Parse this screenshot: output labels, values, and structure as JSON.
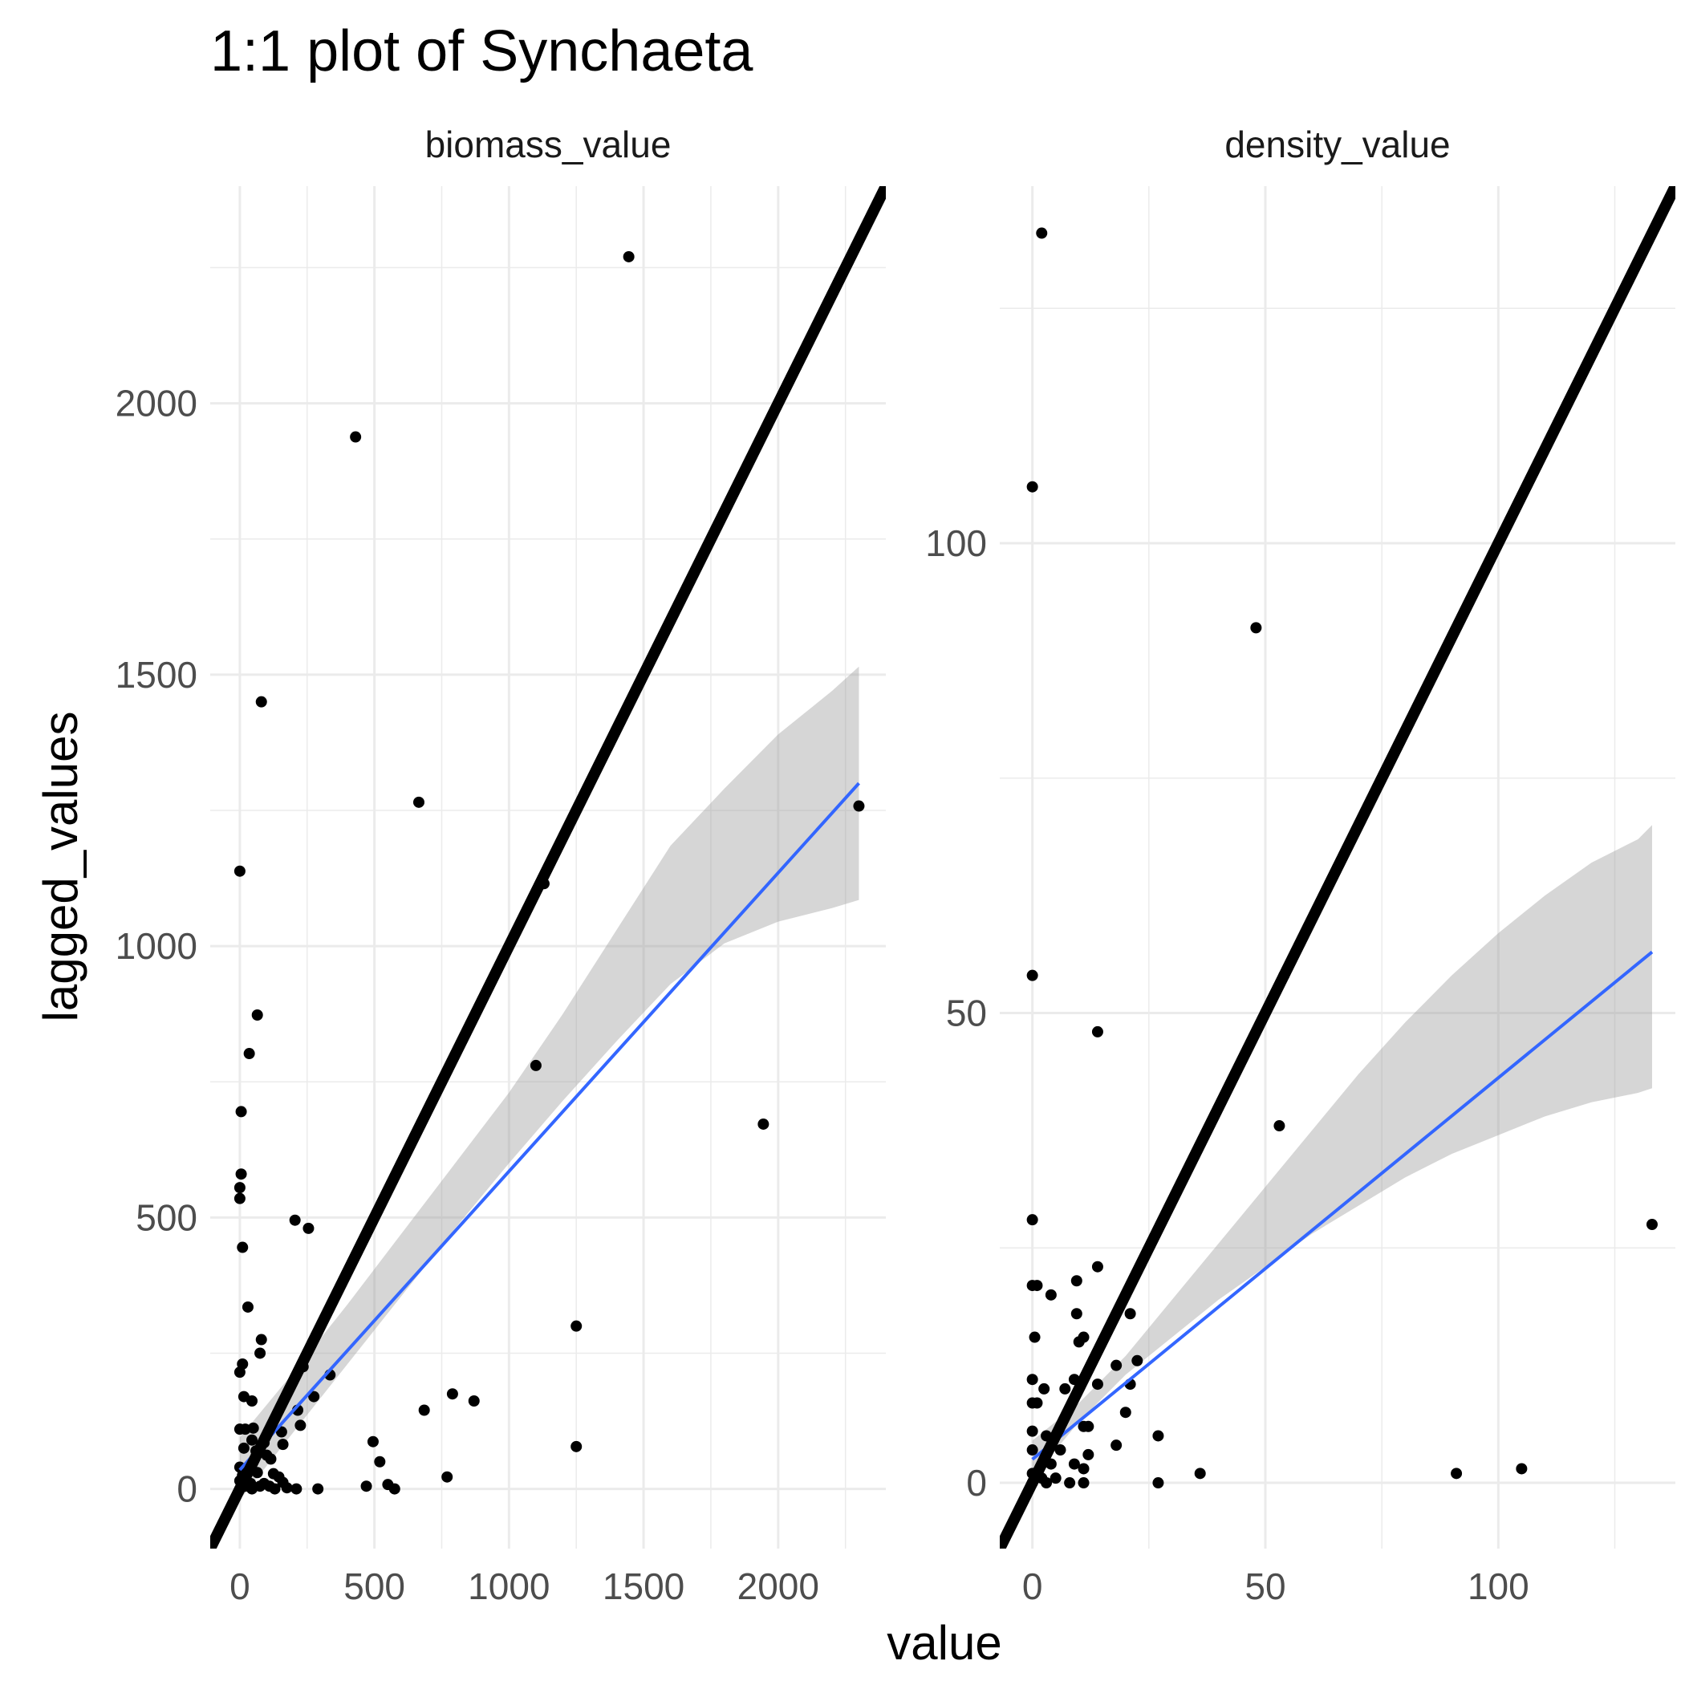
{
  "chart_data": {
    "type": "scatter",
    "title": "1:1 plot of Synchaeta",
    "xlabel": "value",
    "ylabel": "lagged_values",
    "grid": true,
    "colors": {
      "points": "#000000",
      "identity_line": "#000000",
      "fit_line": "#3366FF",
      "ribbon": "#999999"
    },
    "panels": [
      {
        "name": "biomass_value",
        "xlim": [
          -110,
          2400
        ],
        "ylim": [
          -110,
          2400
        ],
        "x_ticks": [
          0,
          500,
          1000,
          1500,
          2000
        ],
        "y_ticks": [
          0,
          500,
          1000,
          1500,
          2000
        ],
        "identity": [
          [
            -110,
            -110
          ],
          [
            2400,
            2400
          ]
        ],
        "fit": {
          "x": [
            0,
            2300
          ],
          "y": [
            35,
            1300
          ]
        },
        "ribbon": {
          "x": [
            0,
            200,
            400,
            600,
            800,
            1000,
            1200,
            1400,
            1600,
            1800,
            2000,
            2200,
            2300
          ],
          "lower": [
            -20,
            105,
            230,
            355,
            480,
            600,
            715,
            825,
            930,
            1005,
            1045,
            1070,
            1085
          ],
          "upper": [
            95,
            215,
            340,
            470,
            600,
            730,
            875,
            1030,
            1185,
            1290,
            1390,
            1470,
            1515
          ]
        },
        "points": [
          [
            1445,
            2270
          ],
          [
            430,
            1938
          ],
          [
            80,
            1450
          ],
          [
            665,
            1265
          ],
          [
            2300,
            1258
          ],
          [
            0,
            1138
          ],
          [
            1130,
            1115
          ],
          [
            65,
            873
          ],
          [
            35,
            802
          ],
          [
            1100,
            780
          ],
          [
            1945,
            672
          ],
          [
            5,
            695
          ],
          [
            5,
            580
          ],
          [
            0,
            555
          ],
          [
            0,
            535
          ],
          [
            205,
            495
          ],
          [
            255,
            480
          ],
          [
            10,
            445
          ],
          [
            30,
            335
          ],
          [
            80,
            275
          ],
          [
            75,
            250
          ],
          [
            10,
            230
          ],
          [
            235,
            225
          ],
          [
            0,
            215
          ],
          [
            335,
            210
          ],
          [
            275,
            170
          ],
          [
            15,
            170
          ],
          [
            45,
            162
          ],
          [
            790,
            175
          ],
          [
            870,
            162
          ],
          [
            215,
            145
          ],
          [
            685,
            145
          ],
          [
            0,
            110
          ],
          [
            20,
            110
          ],
          [
            50,
            112
          ],
          [
            155,
            105
          ],
          [
            225,
            117
          ],
          [
            45,
            90
          ],
          [
            90,
            85
          ],
          [
            160,
            82
          ],
          [
            495,
            87
          ],
          [
            1250,
            78
          ],
          [
            15,
            75
          ],
          [
            60,
            70
          ],
          [
            100,
            62
          ],
          [
            115,
            55
          ],
          [
            520,
            50
          ],
          [
            0,
            40
          ],
          [
            30,
            35
          ],
          [
            65,
            30
          ],
          [
            125,
            28
          ],
          [
            10,
            25
          ],
          [
            145,
            22
          ],
          [
            770,
            22
          ],
          [
            0,
            15
          ],
          [
            40,
            10
          ],
          [
            90,
            10
          ],
          [
            160,
            12
          ],
          [
            550,
            8
          ],
          [
            470,
            5
          ],
          [
            20,
            5
          ],
          [
            75,
            5
          ],
          [
            110,
            5
          ],
          [
            175,
            2
          ],
          [
            210,
            0
          ],
          [
            290,
            0
          ],
          [
            575,
            0
          ],
          [
            0,
            0
          ],
          [
            45,
            0
          ],
          [
            130,
            0
          ],
          [
            1250,
            300
          ]
        ]
      },
      {
        "name": "density_value",
        "xlim": [
          -7,
          138
        ],
        "ylim": [
          -7,
          138
        ],
        "x_ticks": [
          0,
          50,
          100
        ],
        "y_ticks": [
          0,
          50,
          100
        ],
        "identity": [
          [
            -7,
            -7
          ],
          [
            138,
            138
          ]
        ],
        "fit": {
          "x": [
            0,
            133
          ],
          "y": [
            2.5,
            56.5
          ]
        },
        "ribbon": {
          "x": [
            0,
            10,
            20,
            30,
            40,
            50,
            60,
            70,
            80,
            90,
            100,
            110,
            120,
            130,
            133
          ],
          "lower": [
            0.5,
            6.5,
            11.5,
            15.5,
            19.5,
            23,
            26.5,
            29.5,
            32.5,
            35,
            37,
            39,
            40.5,
            41.5,
            42
          ],
          "upper": [
            4.5,
            8.5,
            13.5,
            19.5,
            25.5,
            31.5,
            37.5,
            43.5,
            49,
            54,
            58.5,
            62.5,
            66,
            68.5,
            70
          ]
        },
        "points": [
          [
            2,
            133
          ],
          [
            0,
            106
          ],
          [
            48,
            91
          ],
          [
            0,
            54
          ],
          [
            54,
            54
          ],
          [
            14,
            48
          ],
          [
            53,
            38
          ],
          [
            0,
            28
          ],
          [
            133,
            27.5
          ],
          [
            14,
            23
          ],
          [
            0,
            21
          ],
          [
            1,
            21
          ],
          [
            9.5,
            21.5
          ],
          [
            4,
            20
          ],
          [
            9.5,
            18
          ],
          [
            21,
            18
          ],
          [
            0.5,
            15.5
          ],
          [
            10,
            15
          ],
          [
            11,
            15.5
          ],
          [
            22.5,
            13
          ],
          [
            18,
            12.5
          ],
          [
            0,
            11
          ],
          [
            9,
            11
          ],
          [
            14,
            10.5
          ],
          [
            21,
            10.5
          ],
          [
            2.5,
            10
          ],
          [
            7,
            10
          ],
          [
            0,
            8.5
          ],
          [
            1,
            8.5
          ],
          [
            20,
            7.5
          ],
          [
            11,
            6
          ],
          [
            12,
            6
          ],
          [
            27,
            5
          ],
          [
            0,
            5.5
          ],
          [
            3,
            5
          ],
          [
            18,
            4
          ],
          [
            0,
            3.5
          ],
          [
            6,
            3.5
          ],
          [
            12,
            3
          ],
          [
            4,
            2
          ],
          [
            9,
            2
          ],
          [
            11,
            1.5
          ],
          [
            36,
            1
          ],
          [
            91,
            1
          ],
          [
            105,
            1.5
          ],
          [
            0,
            1
          ],
          [
            1,
            1
          ],
          [
            2,
            0.5
          ],
          [
            5,
            0.5
          ],
          [
            8,
            0
          ],
          [
            11,
            0
          ],
          [
            27,
            0
          ],
          [
            0,
            0
          ],
          [
            3,
            0
          ]
        ]
      }
    ]
  }
}
